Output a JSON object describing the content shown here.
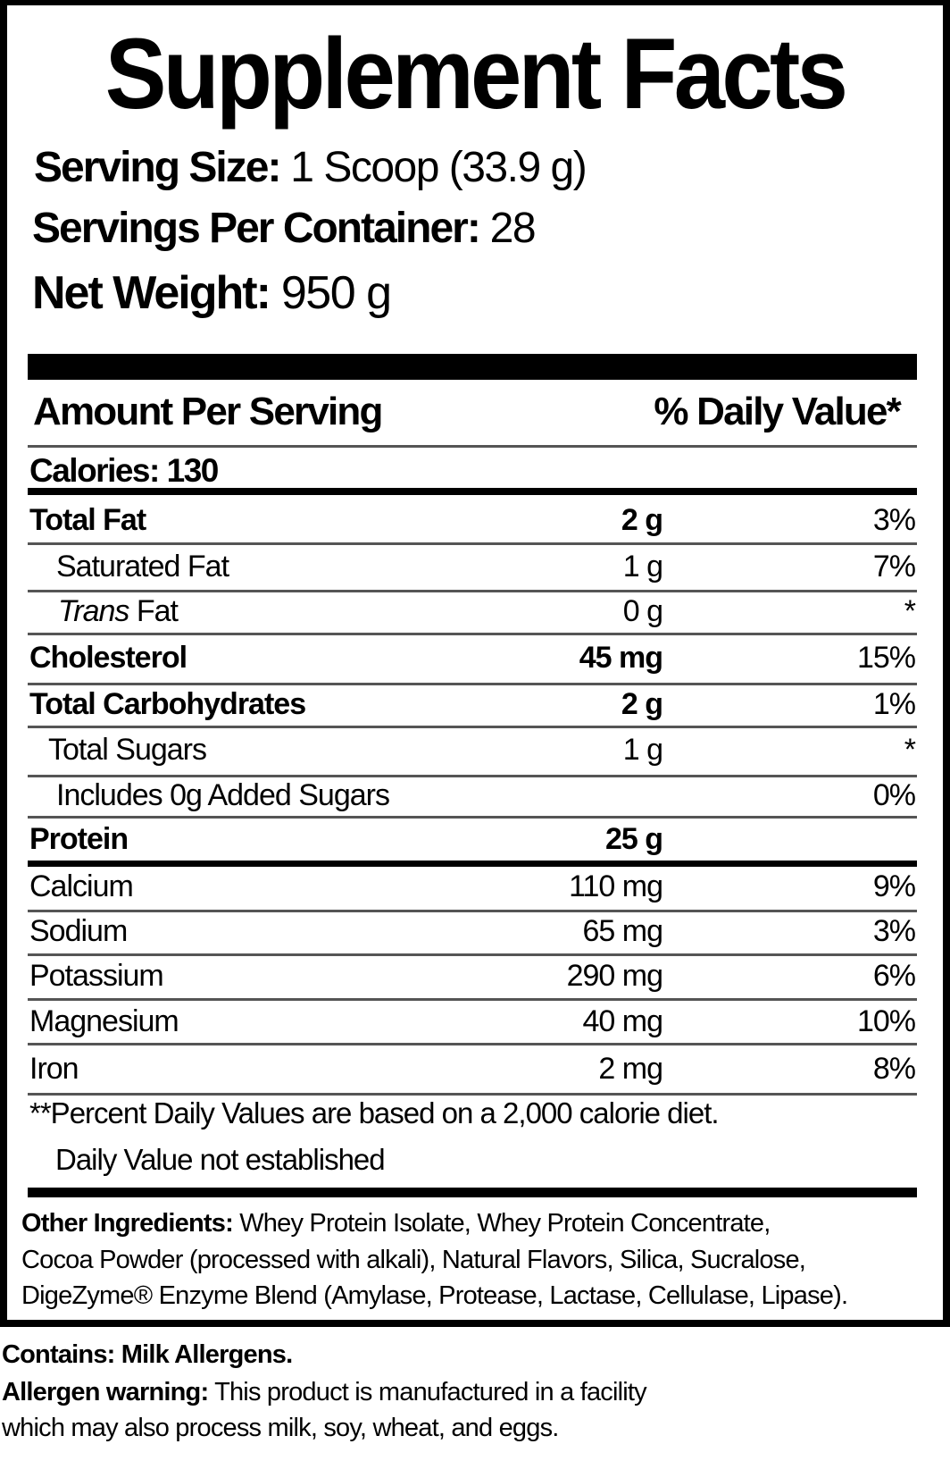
{
  "title": "Supplement Facts",
  "serving": {
    "size_label": "Serving Size:",
    "size_value": "1 Scoop (33.9 g)",
    "per_container_label": "Servings Per Container:",
    "per_container_value": "28",
    "net_weight_label": "Net Weight:",
    "net_weight_value": "950 g"
  },
  "header": {
    "amount": "Amount Per Serving",
    "dv": "% Daily Value*"
  },
  "calories": "Calories: 130",
  "rows": [
    {
      "name": "Total Fat",
      "amount": "2 g",
      "dv": "3%"
    },
    {
      "name": "Saturated Fat",
      "amount": "1 g",
      "dv": "7%"
    },
    {
      "name_italic": "Trans",
      "name": "Fat",
      "amount": "0 g",
      "dv": "*"
    },
    {
      "name": "Cholesterol",
      "amount": "45 mg",
      "dv": "15%"
    },
    {
      "name": "Total Carbohydrates",
      "amount": "2 g",
      "dv": "1%"
    },
    {
      "name": "Total Sugars",
      "amount": "1 g",
      "dv": "*"
    },
    {
      "name": "Includes 0g Added Sugars",
      "amount": "",
      "dv": "0%"
    },
    {
      "name": "Protein",
      "amount": "25 g",
      "dv": ""
    },
    {
      "name": "Calcium",
      "amount": "110 mg",
      "dv": "9%"
    },
    {
      "name": "Sodium",
      "amount": "65 mg",
      "dv": "3%"
    },
    {
      "name": "Potassium",
      "amount": "290 mg",
      "dv": "6%"
    },
    {
      "name": "Magnesium",
      "amount": "40 mg",
      "dv": "10%"
    },
    {
      "name": "Iron",
      "amount": "2 mg",
      "dv": "8%"
    }
  ],
  "footnotes": [
    "**Percent Daily Values are based on a 2,000 calorie diet.",
    "Daily Value not established"
  ],
  "ingredients": {
    "label": "Other Ingredients:",
    "lines": [
      "Whey Protein Isolate, Whey Protein Concentrate,",
      "Cocoa Powder (processed with alkali), Natural Flavors, Silica, Sucralose,",
      "DigeZyme® Enzyme Blend (Amylase, Protease, Lactase, Cellulase, Lipase)."
    ]
  },
  "contains": "Contains: Milk Allergens.",
  "allergen": {
    "label": "Allergen warning:",
    "lines": [
      "This product is manufactured in a facility",
      "which may also process milk, soy, wheat, and eggs."
    ]
  }
}
